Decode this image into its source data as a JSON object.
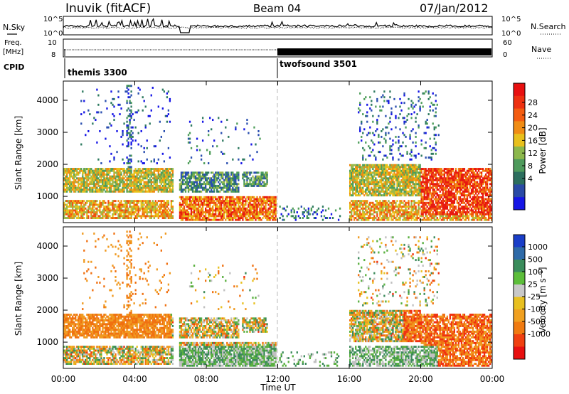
{
  "header": {
    "station": "Inuvik (fitACF)",
    "beam": "Beam 04",
    "date": "07/Jan/2012"
  },
  "strips": {
    "nsky_label": "N.Sky",
    "nsearch_label": "N.Search",
    "freq_label_line1": "Freq.",
    "freq_label_line2": "[MHz]",
    "nave_label": "Nave",
    "cpid_label": "CPID",
    "noise_ticks_left": [
      "10^5",
      "10^0"
    ],
    "noise_ticks_right": [
      "10^5",
      "10^0"
    ],
    "freq_ticks_left": [
      "10",
      "8"
    ],
    "nave_ticks_right": [
      "60",
      "0"
    ],
    "cpid_segments": [
      {
        "label": "themis 3300",
        "start_hour": 0
      },
      {
        "label": "twofsound 3501",
        "start_hour": 12
      }
    ]
  },
  "colors": {
    "power": [
      "#1515e6",
      "#2a4fb0",
      "#2e7a60",
      "#4e9e5a",
      "#9ab84a",
      "#e8c21a",
      "#f08a10",
      "#f05010",
      "#e81810"
    ],
    "velocity": [
      "#1840c0",
      "#2a5fa0",
      "#3b8a5a",
      "#5ab040",
      "#c0c0c0",
      "#e8c020",
      "#f09a20",
      "#f07010",
      "#f03010",
      "#e01010"
    ],
    "power_scale_fill": [
      "#e81010",
      "#ee3010",
      "#f45c10",
      "#f08c14",
      "#e8c01c",
      "#8cb84c",
      "#4e9a5c",
      "#2c6e5e",
      "#2a4aa6",
      "#1616e6"
    ],
    "velocity_scale_fill": [
      "#1a3ec8",
      "#2e6aa8",
      "#3a8c5c",
      "#5cbe3a",
      "#c8c8c8",
      "#e8c020",
      "#f0a020",
      "#f07a10",
      "#f04010",
      "#e81010"
    ]
  },
  "chart_data": [
    {
      "type": "heatmap",
      "name": "power",
      "ylabel": "Slant Range [km]",
      "xlabel": "Time UT",
      "x_range_hours": [
        0,
        24
      ],
      "x_ticks": [
        "00:00",
        "04:00",
        "08:00",
        "12:00",
        "16:00",
        "20:00",
        "00:00"
      ],
      "ylim_km": [
        180,
        4600
      ],
      "y_ticks": [
        1000,
        2000,
        3000,
        4000
      ],
      "colorbar": {
        "label": "Power [dB]",
        "ticks": [
          "28",
          "24",
          "20",
          "16",
          "12",
          "8",
          "4"
        ],
        "range": [
          0,
          30
        ]
      }
    },
    {
      "type": "heatmap",
      "name": "velocity",
      "ylabel": "Slant Range [km]",
      "xlabel": "Time UT",
      "x_range_hours": [
        0,
        24
      ],
      "x_ticks": [
        "00:00",
        "04:00",
        "08:00",
        "12:00",
        "16:00",
        "20:00",
        "00:00"
      ],
      "ylim_km": [
        180,
        4600
      ],
      "y_ticks": [
        1000,
        2000,
        3000,
        4000
      ],
      "colorbar": {
        "label": "Velocity [m s⁻¹]",
        "ticks": [
          "1000",
          "500",
          "100",
          "25",
          "-25",
          "-100",
          "-500",
          "-1000"
        ],
        "range": [
          -1200,
          1200
        ]
      }
    }
  ],
  "axis": {
    "time_label": "Time UT"
  }
}
